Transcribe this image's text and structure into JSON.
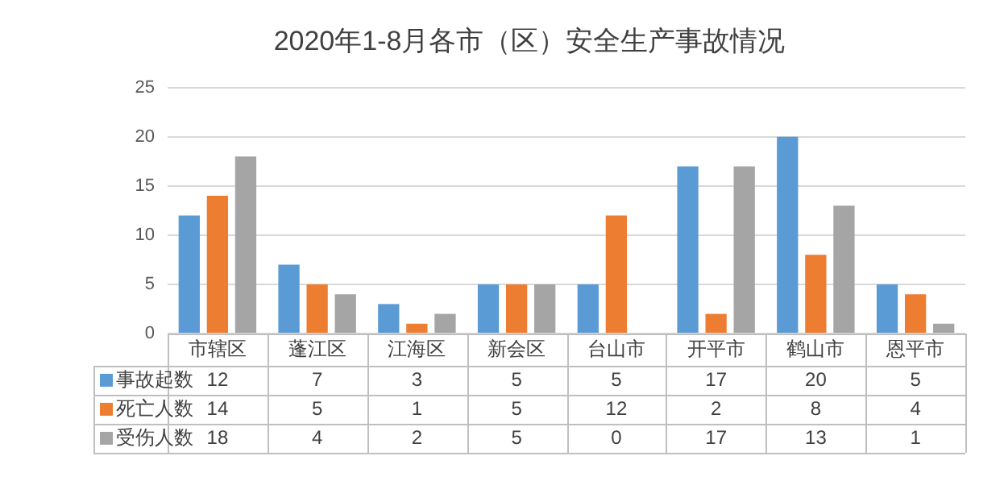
{
  "chart_data": {
    "type": "bar",
    "title": "2020年1-8月各市（区）安全生产事故情况",
    "categories": [
      "市辖区",
      "蓬江区",
      "江海区",
      "新会区",
      "台山市",
      "开平市",
      "鹤山市",
      "恩平市"
    ],
    "series": [
      {
        "name": "事故起数",
        "color": "#5b9bd5",
        "values": [
          12,
          7,
          3,
          5,
          5,
          17,
          20,
          5
        ]
      },
      {
        "name": "死亡人数",
        "color": "#ed7d31",
        "values": [
          14,
          5,
          1,
          5,
          12,
          2,
          8,
          4
        ]
      },
      {
        "name": "受伤人数",
        "color": "#a5a5a5",
        "values": [
          18,
          4,
          2,
          5,
          0,
          17,
          13,
          1
        ]
      }
    ],
    "ylim": [
      0,
      25
    ],
    "yticks": [
      0,
      5,
      10,
      15,
      20,
      25
    ],
    "grid": "y",
    "legend": "bottom left",
    "data_labels": true
  }
}
